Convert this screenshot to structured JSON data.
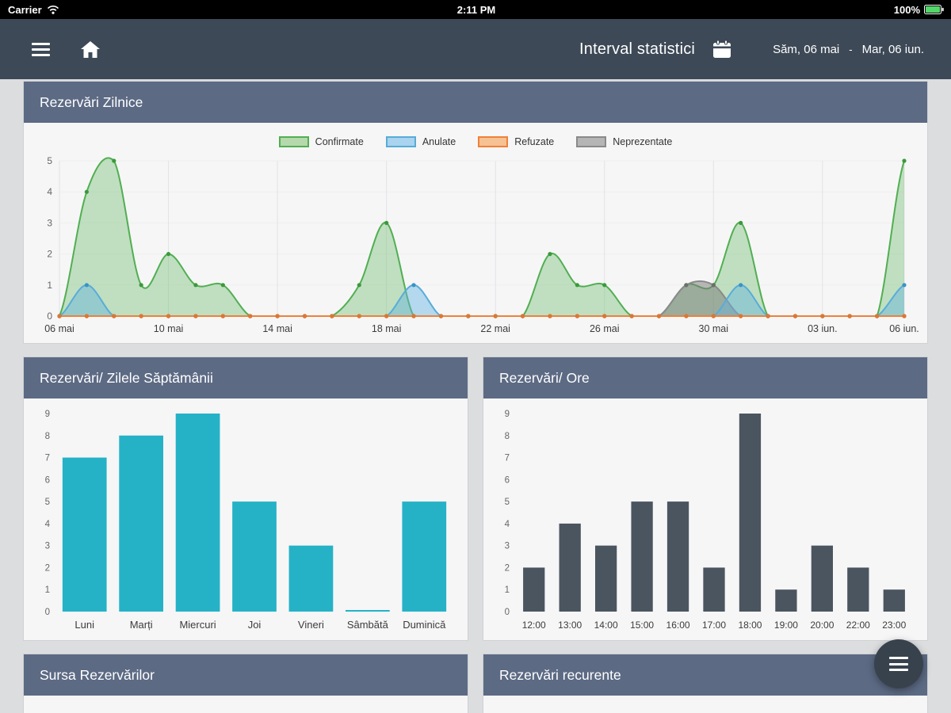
{
  "status_bar": {
    "carrier": "Carrier",
    "time": "2:11 PM",
    "battery": "100%"
  },
  "nav": {
    "title": "Interval statistici",
    "date_start": "Săm, 06 mai",
    "date_sep": "-",
    "date_end": "Mar, 06 iun."
  },
  "panels": {
    "daily": {
      "title": "Rezervări Zilnice"
    },
    "weekday": {
      "title": "Rezervări/ Zilele Săptămânii"
    },
    "hours": {
      "title": "Rezervări/ Ore"
    },
    "source": {
      "title": "Sursa Rezervărilor"
    },
    "recurring": {
      "title": "Rezervări recurente"
    }
  },
  "colors": {
    "nav_bg": "#3d4957",
    "panel_header_bg": "#5c6a84",
    "teal_bar": "#25b2c6",
    "dark_bar": "#4a555f",
    "battery_green": "#53d769"
  },
  "chart_data": [
    {
      "type": "area",
      "title": "Rezervări Zilnice",
      "n_points": 32,
      "ylim": [
        0,
        5
      ],
      "y_ticks": [
        0,
        1,
        2,
        3,
        4,
        5
      ],
      "x_tick_labels": [
        "06 mai",
        "10 mai",
        "14 mai",
        "18 mai",
        "22 mai",
        "26 mai",
        "30 mai",
        "03 iun.",
        "06 iun."
      ],
      "x_tick_positions": [
        0,
        4,
        8,
        12,
        16,
        20,
        24,
        28,
        31
      ],
      "legend_position": "top",
      "grid": true,
      "draw_order": [
        0,
        3,
        1,
        2
      ],
      "series": [
        {
          "name": "Confirmate",
          "color": "#52ae52",
          "dot": "#3a9a3a",
          "fill": "rgba(110,190,110,0.40)",
          "swatch": "#b5d9ad",
          "values": [
            0,
            4,
            5,
            1,
            2,
            1,
            1,
            0,
            0,
            0,
            0,
            1,
            3,
            0,
            0,
            0,
            0,
            0,
            2,
            1,
            1,
            0,
            0,
            1,
            1,
            3,
            0,
            0,
            0,
            0,
            0,
            5
          ]
        },
        {
          "name": "Anulate",
          "color": "#58acd8",
          "dot": "#3a93c6",
          "fill": "rgba(100,180,225,0.45)",
          "swatch": "#a9d3ee",
          "values": [
            0,
            1,
            0,
            0,
            0,
            0,
            0,
            0,
            0,
            0,
            0,
            0,
            0,
            1,
            0,
            0,
            0,
            0,
            0,
            0,
            0,
            0,
            0,
            0,
            0,
            1,
            0,
            0,
            0,
            0,
            0,
            1
          ]
        },
        {
          "name": "Refuzate",
          "color": "#ef8139",
          "dot": "#e0762e",
          "fill": null,
          "swatch": "#f6c193",
          "values": [
            0,
            0,
            0,
            0,
            0,
            0,
            0,
            0,
            0,
            0,
            0,
            0,
            0,
            0,
            0,
            0,
            0,
            0,
            0,
            0,
            0,
            0,
            0,
            0,
            0,
            0,
            0,
            0,
            0,
            0,
            0,
            0
          ]
        },
        {
          "name": "Neprezentate",
          "color": "#8a8a8a",
          "dot": "#6e6e6e",
          "fill": "rgba(120,120,120,0.50)",
          "swatch": "#b5b5b5",
          "values": [
            0,
            0,
            0,
            0,
            0,
            0,
            0,
            0,
            0,
            0,
            0,
            0,
            0,
            0,
            0,
            0,
            0,
            0,
            0,
            0,
            0,
            0,
            0,
            1,
            1,
            0,
            0,
            0,
            0,
            0,
            0,
            0
          ]
        }
      ]
    },
    {
      "type": "bar",
      "title": "Rezervări/ Zilele Săptămânii",
      "categories": [
        "Luni",
        "Marți",
        "Miercuri",
        "Joi",
        "Vineri",
        "Sâmbătă",
        "Duminică"
      ],
      "values": [
        7,
        8,
        9,
        5,
        3,
        0,
        5
      ],
      "bar_color": "#25b2c6",
      "ylim": [
        0,
        9
      ],
      "grid": false
    },
    {
      "type": "bar",
      "title": "Rezervări/ Ore",
      "categories": [
        "12:00",
        "13:00",
        "14:00",
        "15:00",
        "16:00",
        "17:00",
        "18:00",
        "19:00",
        "20:00",
        "22:00",
        "23:00"
      ],
      "values": [
        2,
        4,
        3,
        5,
        5,
        2,
        9,
        1,
        3,
        2,
        1
      ],
      "bar_color": "#4a555f",
      "ylim": [
        0,
        9
      ],
      "grid": false
    }
  ]
}
